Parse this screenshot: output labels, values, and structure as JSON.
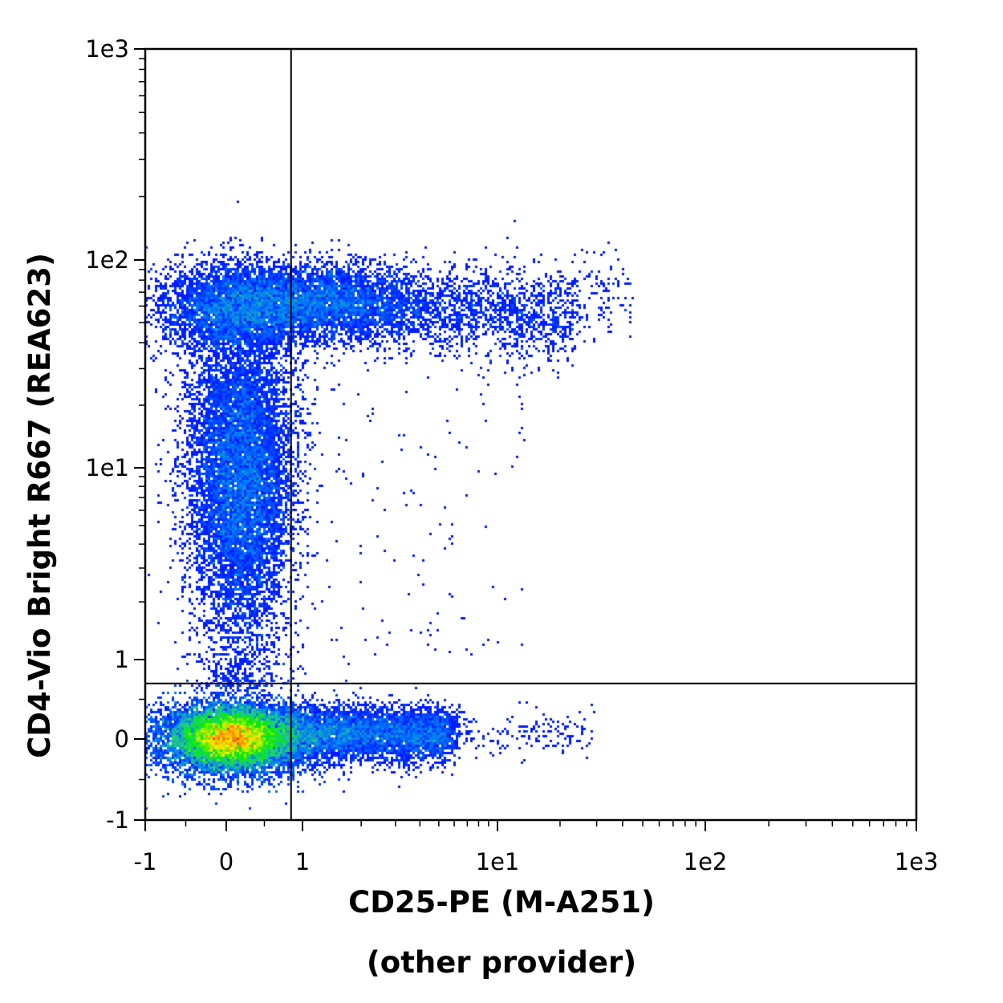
{
  "chart_data": {
    "type": "scatter",
    "title": "",
    "xlabel": "CD25-PE (M-A251)",
    "xlabel_line2": "(other provider)",
    "ylabel": "CD4-Vio Bright R667 (REA623)",
    "x_scale": "biexponential",
    "y_scale": "biexponential",
    "xlim": [
      -1,
      1000
    ],
    "ylim": [
      -1,
      1000
    ],
    "x_ticks": [
      {
        "value": -1,
        "label": "-1"
      },
      {
        "value": 0,
        "label": "0"
      },
      {
        "value": 1,
        "label": "1"
      },
      {
        "value": 10,
        "label": "1e1"
      },
      {
        "value": 100,
        "label": "1e2"
      },
      {
        "value": 1000,
        "label": "1e3"
      }
    ],
    "y_ticks": [
      {
        "value": -1,
        "label": "-1"
      },
      {
        "value": 0,
        "label": "0"
      },
      {
        "value": 1,
        "label": "1"
      },
      {
        "value": 10,
        "label": "1e1"
      },
      {
        "value": 100,
        "label": "1e2"
      },
      {
        "value": 1000,
        "label": "1e3"
      }
    ],
    "quadrant_gate": {
      "x": 0.85,
      "y": 0.7
    },
    "density_colormap": [
      "#0000ff",
      "#0077ff",
      "#22cc88",
      "#00ee00",
      "#ffee00",
      "#ff3300"
    ],
    "populations": [
      {
        "x_center": 0.1,
        "y_center": 0.0,
        "x_spread": 0.45,
        "y_spread": 0.28,
        "relative_density": "highest"
      },
      {
        "x_center": 0.3,
        "y_center": 60,
        "x_spread": 0.6,
        "y_spread": 0.25,
        "relative_density": "medium"
      },
      {
        "x_center": 3,
        "y_center": 60,
        "x_spread": 0.5,
        "y_spread": 0.2,
        "relative_density": "medium"
      },
      {
        "x_center": 0.3,
        "y_center": 10,
        "x_spread": 0.35,
        "y_spread": 0.5,
        "relative_density": "medium"
      },
      {
        "x_center": 2.5,
        "y_center": 0.0,
        "x_spread": 0.4,
        "y_spread": 0.2,
        "relative_density": "low"
      }
    ]
  }
}
